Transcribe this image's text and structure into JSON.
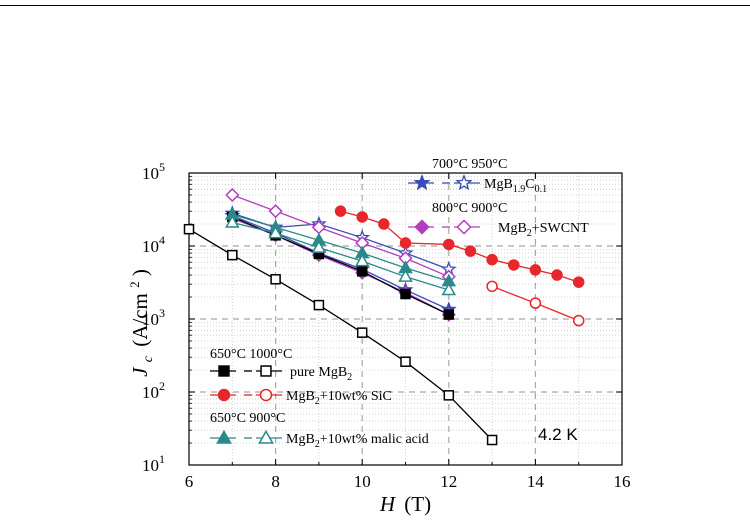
{
  "chart_data": {
    "type": "line",
    "xlabel": "H",
    "xunit": "(T)",
    "ylabel_sym": "J",
    "ylabel_sub": "c",
    "ylabel_unit": "(A/cm",
    "ylabel_unit_sup": "2",
    "ylabel_unit_close": ")",
    "xlim": [
      6,
      16
    ],
    "ylim": [
      10,
      100000
    ],
    "yscale": "log",
    "xticks": [
      6,
      8,
      10,
      12,
      14,
      16
    ],
    "yticks": [
      {
        "value": 10,
        "base": "10",
        "exp": "1"
      },
      {
        "value": 100,
        "base": "10",
        "exp": "2"
      },
      {
        "value": 1000,
        "base": "10",
        "exp": "3"
      },
      {
        "value": 10000,
        "base": "10",
        "exp": "4"
      },
      {
        "value": 100000,
        "base": "10",
        "exp": "5"
      }
    ],
    "grid": true,
    "annotation": "4.2 K",
    "series": [
      {
        "color": "#3a4cb5",
        "marker": "star",
        "filled": true,
        "x": [
          7,
          8,
          9,
          10,
          11,
          12
        ],
        "y": [
          26000,
          15000,
          8000,
          4800,
          2500,
          1350
        ]
      },
      {
        "color": "#3a4cb5",
        "marker": "star",
        "filled": false,
        "x": [
          7,
          8,
          9,
          10,
          11,
          12
        ],
        "y": [
          28000,
          18000,
          20000,
          13000,
          8000,
          4800
        ]
      },
      {
        "color": "#b33dbf",
        "marker": "diamond",
        "filled": true,
        "x": [
          7,
          8,
          9,
          10,
          11,
          12
        ],
        "y": [
          24000,
          14000,
          7500,
          4300,
          2300,
          1150
        ]
      },
      {
        "color": "#b33dbf",
        "marker": "diamond",
        "filled": false,
        "x": [
          7,
          8,
          9,
          10,
          11,
          12
        ],
        "y": [
          50000,
          30000,
          18000,
          11000,
          6800,
          3800
        ]
      },
      {
        "color": "#000000",
        "marker": "square",
        "filled": true,
        "x": [
          7,
          8,
          9,
          10,
          11,
          12
        ],
        "y": [
          25000,
          14000,
          7800,
          4500,
          2200,
          1150
        ]
      },
      {
        "color": "#000000",
        "marker": "square",
        "filled": false,
        "x": [
          6,
          7,
          8,
          9,
          10,
          11,
          12,
          13
        ],
        "y": [
          17000,
          7500,
          3500,
          1550,
          650,
          260,
          90,
          22
        ]
      },
      {
        "color": "#e8262b",
        "marker": "circle",
        "filled": true,
        "x": [
          9.5,
          10,
          10.5,
          11,
          12,
          12.5,
          13,
          13.5,
          14,
          14.5,
          15
        ],
        "y": [
          30000,
          25000,
          20000,
          11000,
          10500,
          8500,
          6500,
          5500,
          4700,
          4000,
          3200
        ]
      },
      {
        "color": "#e8262b",
        "marker": "circle",
        "filled": false,
        "x": [
          13,
          14,
          15
        ],
        "y": [
          2800,
          1650,
          950
        ]
      },
      {
        "color": "#2a8a8a",
        "marker": "triangle",
        "filled": true,
        "x": [
          7,
          8,
          9,
          10,
          11,
          12
        ],
        "y": [
          27000,
          18000,
          12000,
          8000,
          5000,
          3300
        ]
      },
      {
        "color": "#2a8a8a",
        "marker": "triangle",
        "filled": false,
        "x": [
          7,
          8,
          9,
          10,
          11,
          12
        ],
        "y": [
          21000,
          15000,
          9500,
          6200,
          3800,
          2500
        ]
      }
    ],
    "legend_top": [
      {
        "temps": "700°C  950°C",
        "label_main": "MgB",
        "label_sub": "1.9",
        "label_main2": "C",
        "label_sub2": "0.1",
        "color": "#3a4cb5",
        "marker": "star"
      },
      {
        "temps": "800°C  900°C",
        "label": "MgB",
        "label_sub": "2",
        "label_rest": "+SWCNT",
        "color": "#b33dbf",
        "marker": "diamond"
      }
    ],
    "legend_bottom": [
      {
        "temps": "650°C 1000°C",
        "label": "pure MgB",
        "label_sub": "2",
        "label_rest": "",
        "color": "#000000",
        "marker": "square"
      },
      {
        "temps": "",
        "label": "MgB",
        "label_sub": "2",
        "label_rest": "+10wt% SiC",
        "color": "#e8262b",
        "marker": "circle"
      },
      {
        "temps": "650°C  900°C",
        "label": "MgB",
        "label_sub": "2",
        "label_rest": "+10wt% malic acid",
        "color": "#2a8a8a",
        "marker": "triangle"
      }
    ]
  }
}
